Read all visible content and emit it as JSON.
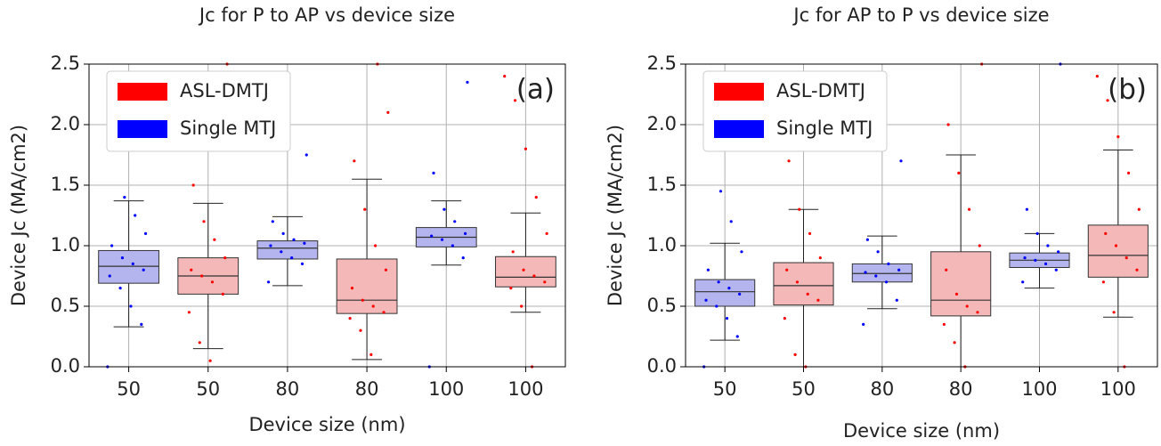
{
  "chart_data": [
    {
      "type": "box",
      "title": "Jc for P to AP vs device size",
      "xlabel": "Device size (nm)",
      "ylabel": "Device  Jc (MA/cm2)",
      "annotation": "(a)",
      "categories": [
        "50",
        "50",
        "80",
        "80",
        "100",
        "100"
      ],
      "ylim": [
        0,
        2.5
      ],
      "yticks": [
        {
          "value": 0,
          "label": "0.0"
        },
        0.5,
        {
          "value": 1,
          "label": "1.0"
        },
        1.5,
        {
          "value": 2,
          "label": "2.0"
        },
        2.5
      ],
      "grid": true,
      "legend": "upper left",
      "series": [
        {
          "name": "ASL-DMTJ",
          "color": "#ff0000",
          "box_color": "#f4b8b8",
          "boxes": [
            null,
            {
              "whislo": 0.15,
              "q1": 0.6,
              "med": 0.75,
              "q3": 0.9,
              "whishi": 1.35,
              "points": [
                0.05,
                0.2,
                0.45,
                0.6,
                0.7,
                0.75,
                0.8,
                0.9,
                1.05,
                1.2,
                1.5,
                2.5
              ]
            },
            null,
            {
              "whislo": 0.06,
              "q1": 0.44,
              "med": 0.55,
              "q3": 0.89,
              "whishi": 1.55,
              "points": [
                0.1,
                0.3,
                0.4,
                0.45,
                0.5,
                0.55,
                0.65,
                0.8,
                1.0,
                1.3,
                1.7,
                2.1,
                2.5
              ]
            },
            null,
            {
              "whislo": 0.45,
              "q1": 0.66,
              "med": 0.74,
              "q3": 0.91,
              "whishi": 1.27,
              "points": [
                0.0,
                0.5,
                0.65,
                0.7,
                0.75,
                0.8,
                0.95,
                1.1,
                1.4,
                1.8,
                2.2,
                2.4
              ]
            }
          ]
        },
        {
          "name": "Single MTJ",
          "color": "#0000ff",
          "box_color": "#b4b4ee",
          "boxes": [
            {
              "whislo": 0.33,
              "q1": 0.69,
              "med": 0.83,
              "q3": 0.96,
              "whishi": 1.37,
              "points": [
                0.0,
                0.35,
                0.5,
                0.65,
                0.75,
                0.8,
                0.85,
                0.9,
                1.0,
                1.1,
                1.25,
                1.4
              ]
            },
            null,
            {
              "whislo": 0.67,
              "q1": 0.89,
              "med": 0.98,
              "q3": 1.04,
              "whishi": 1.24,
              "points": [
                0.7,
                0.85,
                0.9,
                0.95,
                1.0,
                1.02,
                1.05,
                1.1,
                1.2,
                1.75
              ]
            },
            null,
            {
              "whislo": 0.84,
              "q1": 0.99,
              "med": 1.07,
              "q3": 1.15,
              "whishi": 1.37,
              "points": [
                0.0,
                0.9,
                1.0,
                1.05,
                1.08,
                1.1,
                1.2,
                1.3,
                1.6,
                2.35
              ]
            },
            null
          ]
        }
      ]
    },
    {
      "type": "box",
      "title": "Jc for AP to P vs device size",
      "xlabel": "Device size (nm)",
      "ylabel": "Device  Jc (MA/cm2)",
      "annotation": "(b)",
      "categories": [
        "50",
        "50",
        "80",
        "80",
        "100",
        "100"
      ],
      "ylim": [
        0,
        2.5
      ],
      "yticks": [
        {
          "value": 0,
          "label": "0.0"
        },
        0.5,
        {
          "value": 1,
          "label": "1.0"
        },
        1.5,
        {
          "value": 2,
          "label": "2.0"
        },
        2.5
      ],
      "grid": true,
      "legend": "upper left",
      "series": [
        {
          "name": "ASL-DMTJ",
          "color": "#ff0000",
          "box_color": "#f4b8b8",
          "boxes": [
            null,
            {
              "whislo": 0.0,
              "q1": 0.51,
              "med": 0.67,
              "q3": 0.86,
              "whishi": 1.3,
              "points": [
                0.0,
                0.1,
                0.4,
                0.55,
                0.6,
                0.7,
                0.8,
                0.9,
                1.1,
                1.3,
                1.7,
                1.9
              ]
            },
            null,
            {
              "whislo": 0.0,
              "q1": 0.42,
              "med": 0.55,
              "q3": 0.95,
              "whishi": 1.75,
              "points": [
                0.0,
                0.2,
                0.35,
                0.45,
                0.5,
                0.6,
                0.8,
                1.0,
                1.3,
                1.6,
                2.0,
                2.5
              ]
            },
            null,
            {
              "whislo": 0.41,
              "q1": 0.74,
              "med": 0.92,
              "q3": 1.17,
              "whishi": 1.79,
              "points": [
                0.0,
                0.45,
                0.7,
                0.8,
                0.9,
                1.0,
                1.1,
                1.3,
                1.6,
                1.9,
                2.2,
                2.4
              ]
            }
          ]
        },
        {
          "name": "Single MTJ",
          "color": "#0000ff",
          "box_color": "#b4b4ee",
          "boxes": [
            {
              "whislo": 0.22,
              "q1": 0.5,
              "med": 0.62,
              "q3": 0.72,
              "whishi": 1.02,
              "points": [
                0.0,
                0.25,
                0.4,
                0.5,
                0.55,
                0.6,
                0.65,
                0.7,
                0.8,
                0.95,
                1.2,
                1.45
              ]
            },
            null,
            {
              "whislo": 0.48,
              "q1": 0.7,
              "med": 0.77,
              "q3": 0.85,
              "whishi": 1.08,
              "points": [
                0.35,
                0.55,
                0.7,
                0.75,
                0.78,
                0.8,
                0.85,
                0.95,
                1.05,
                1.7
              ]
            },
            null,
            {
              "whislo": 0.65,
              "q1": 0.82,
              "med": 0.88,
              "q3": 0.94,
              "whishi": 1.1,
              "points": [
                0.7,
                0.8,
                0.85,
                0.88,
                0.9,
                0.95,
                1.0,
                1.1,
                1.3,
                2.5
              ]
            },
            null
          ]
        }
      ]
    }
  ]
}
